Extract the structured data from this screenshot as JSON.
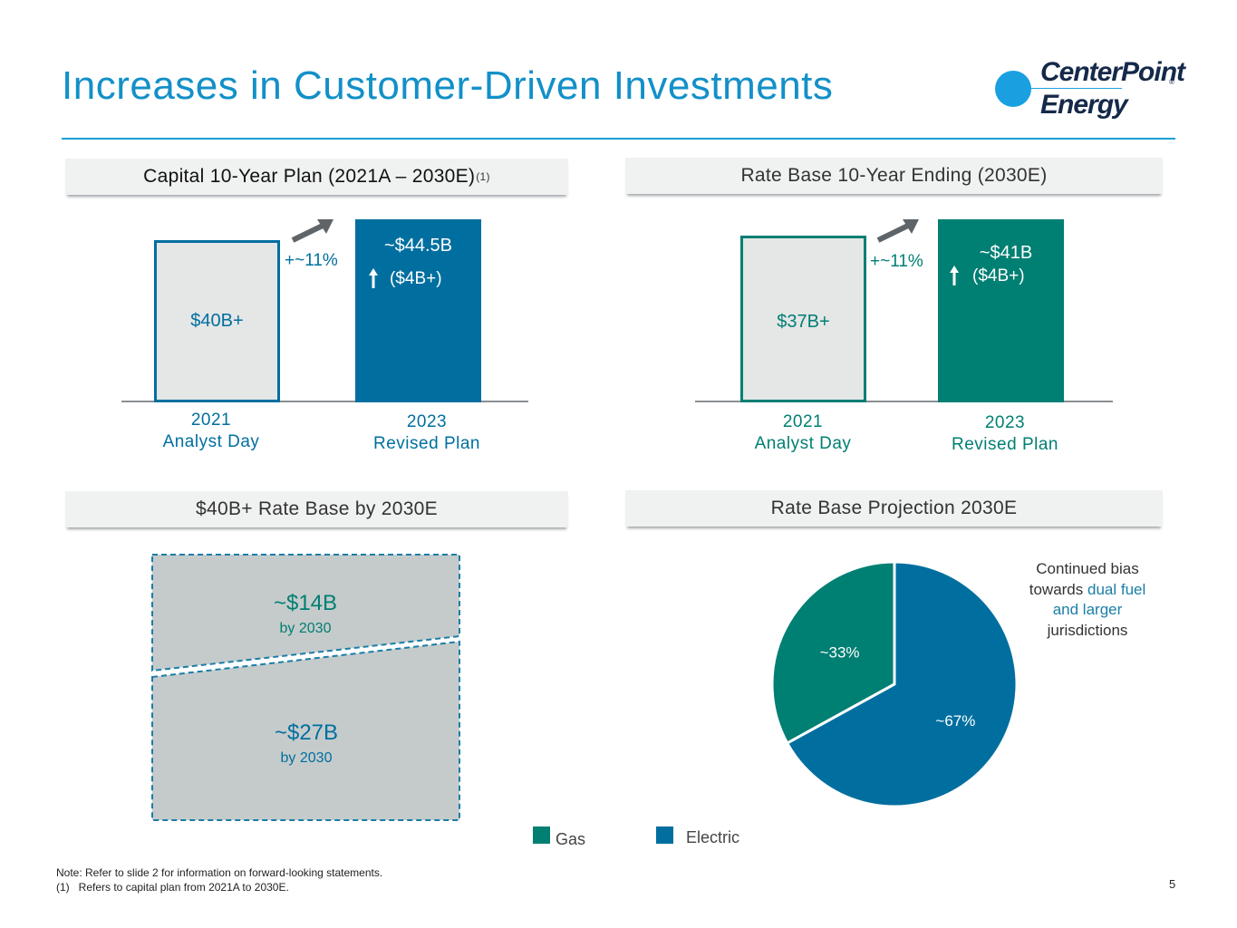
{
  "title": "Increases in Customer-Driven Investments",
  "logo": {
    "line1": "CenterPoint",
    "line2": "Energy",
    "reg": "®"
  },
  "colors": {
    "blue": "#006f9f",
    "teal": "#007f73",
    "light_blue": "#1390c8",
    "gray_fill": "#c5cbcb"
  },
  "capital_plan": {
    "header": "Capital 10-Year Plan (2021A – 2030E)",
    "header_sup": "(1)",
    "bar1_label": "$40B+",
    "bar2_label": "~$44.5B",
    "bar2_sub": "($4B+)",
    "increase": "+~11%",
    "x1_line1": "2021",
    "x1_line2": "Analyst Day",
    "x2_line1": "2023",
    "x2_line2": "Revised Plan"
  },
  "rate_base_ending": {
    "header": "Rate Base 10-Year Ending (2030E)",
    "bar1_label": "$37B+",
    "bar2_label": "~$41B",
    "bar2_sub": "($4B+)",
    "increase": "+~11%",
    "x1_line1": "2021",
    "x1_line2": "Analyst Day",
    "x2_line1": "2023",
    "x2_line2": "Revised Plan"
  },
  "rate_base_2030": {
    "header": "$40B+ Rate Base by 2030E",
    "gas_value": "~$14B",
    "gas_sub": "by 2030",
    "elec_value": "~$27B",
    "elec_sub": "by 2030"
  },
  "projection": {
    "header": "Rate Base Projection 2030E",
    "note_line1": "Continued bias",
    "note_line2a": "towards ",
    "note_line2b": "dual fuel",
    "note_line3": "and larger",
    "note_line4": "jurisdictions"
  },
  "chart_data": {
    "type": "pie",
    "title": "Rate Base Projection 2030E",
    "categories": [
      "Gas",
      "Electric"
    ],
    "values": [
      33,
      67
    ],
    "labels": [
      "~33%",
      "~67%"
    ],
    "colors": [
      "#007f73",
      "#006f9f"
    ]
  },
  "legend": {
    "gas": "Gas",
    "electric": "Electric"
  },
  "footnotes": {
    "note": "Note: Refer to slide 2 for information on forward-looking statements.",
    "ref": "(1)   Refers to capital plan from 2021A to 2030E."
  },
  "page_number": "5"
}
